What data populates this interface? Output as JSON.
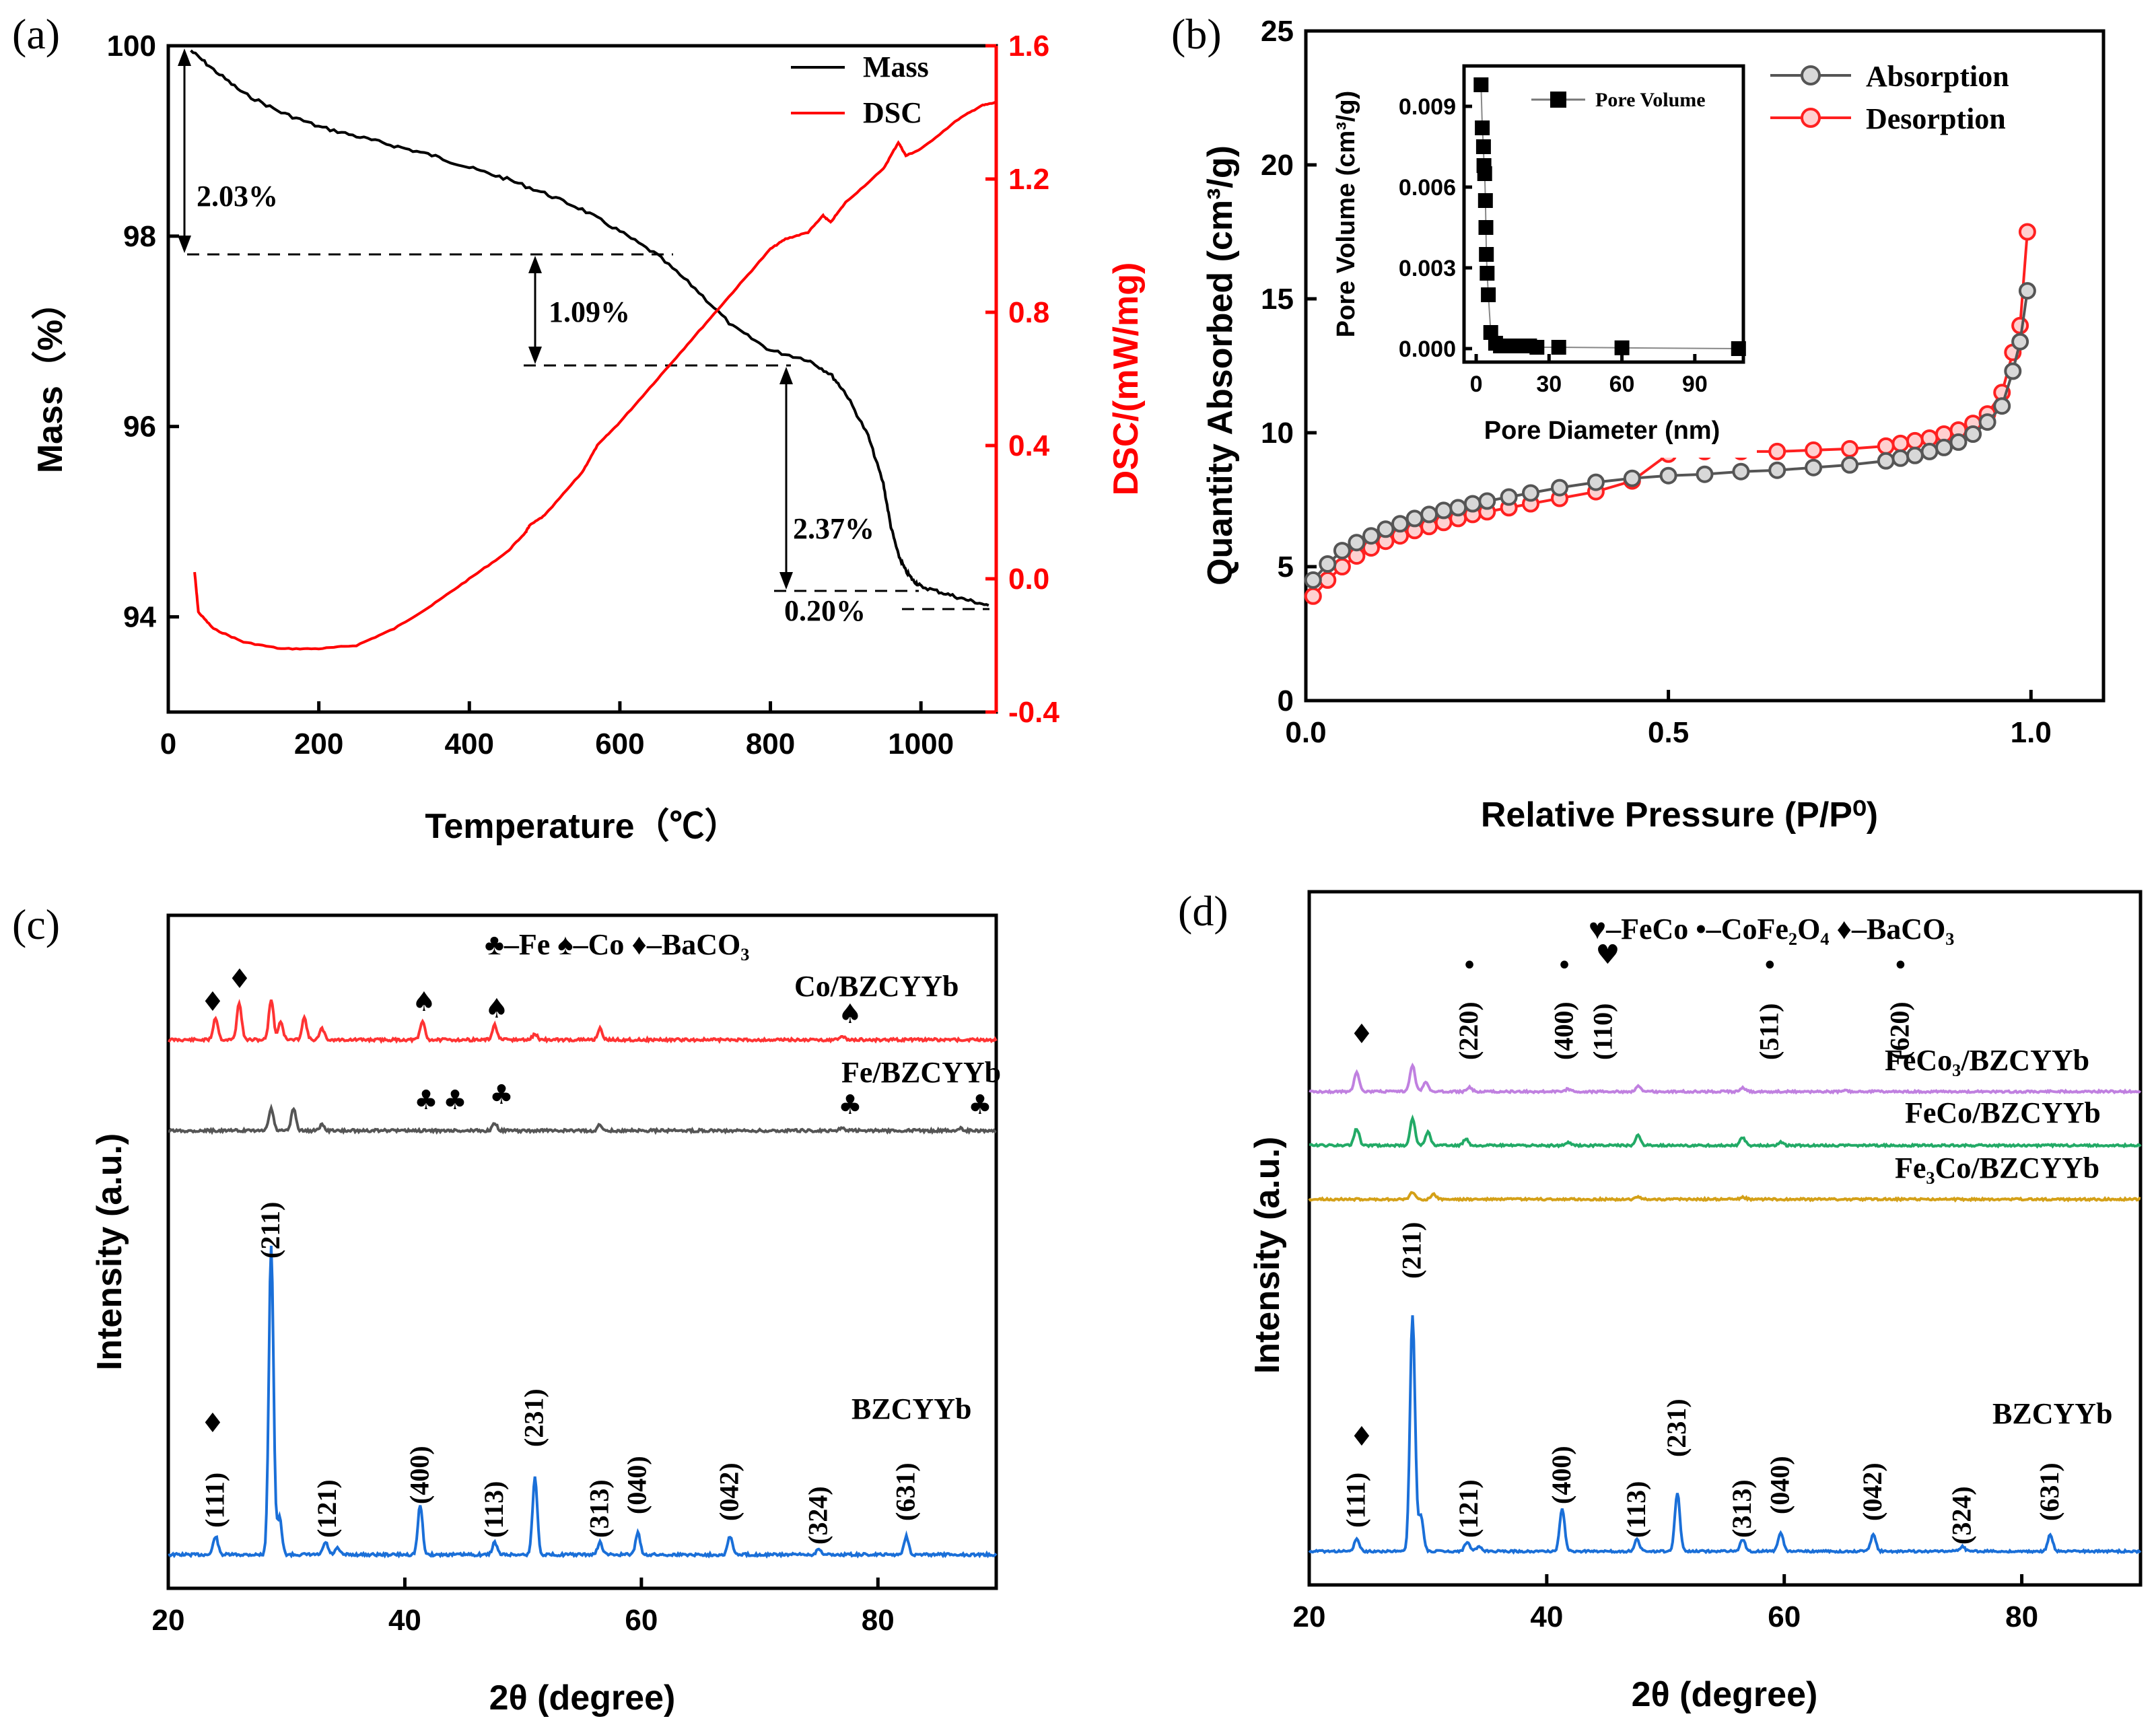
{
  "chart_data": [
    {
      "id": "a",
      "panel_label": "(a)",
      "type": "line",
      "xlabel": "Temperature（℃）",
      "ylabel": "Mass（%）",
      "y2label": "DSC/(mW/mg)",
      "xlim": [
        0,
        1100
      ],
      "ylim": [
        93,
        100
      ],
      "y2lim": [
        -0.4,
        1.6
      ],
      "xticks": [
        0,
        200,
        400,
        600,
        800,
        1000
      ],
      "yticks": [
        94,
        96,
        98,
        100
      ],
      "y2ticks": [
        -0.4,
        0.0,
        0.4,
        0.8,
        1.2,
        1.6
      ],
      "colors": {
        "Mass": "#000000",
        "DSC": "#ff0000"
      },
      "series": [
        {
          "name": "Mass",
          "axis": "left",
          "x": [
            30,
            60,
            100,
            150,
            200,
            250,
            300,
            350,
            400,
            450,
            500,
            550,
            600,
            650,
            700,
            750,
            800,
            850,
            880,
            900,
            930,
            950,
            960,
            970,
            980,
            990,
            1000,
            1030,
            1060,
            1090
          ],
          "y": [
            99.95,
            99.75,
            99.5,
            99.3,
            99.15,
            99.05,
            98.95,
            98.85,
            98.72,
            98.6,
            98.45,
            98.28,
            98.05,
            97.8,
            97.45,
            97.05,
            96.8,
            96.7,
            96.55,
            96.35,
            95.9,
            95.4,
            94.95,
            94.65,
            94.48,
            94.38,
            94.32,
            94.25,
            94.18,
            94.12
          ]
        },
        {
          "name": "DSC",
          "axis": "right",
          "x": [
            35,
            40,
            60,
            100,
            150,
            200,
            250,
            300,
            350,
            400,
            450,
            475,
            480,
            500,
            550,
            570,
            600,
            650,
            700,
            750,
            800,
            820,
            850,
            870,
            880,
            900,
            950,
            970,
            980,
            1000,
            1050,
            1080,
            1100
          ],
          "y": [
            0.02,
            -0.1,
            -0.15,
            -0.19,
            -0.21,
            -0.21,
            -0.2,
            -0.15,
            -0.08,
            0.0,
            0.08,
            0.14,
            0.16,
            0.19,
            0.32,
            0.4,
            0.47,
            0.6,
            0.73,
            0.86,
            0.99,
            1.02,
            1.04,
            1.09,
            1.07,
            1.13,
            1.23,
            1.31,
            1.27,
            1.29,
            1.38,
            1.42,
            1.43
          ]
        }
      ],
      "annotations": [
        "2.03%",
        "1.09%",
        "2.37%",
        "0.20%"
      ]
    },
    {
      "id": "b",
      "panel_label": "(b)",
      "type": "line",
      "xlabel": "Relative Pressure (P/P⁰)",
      "ylabel": "Quantity Absorbed (cm³/g)",
      "xlim": [
        0,
        1.1
      ],
      "ylim": [
        0,
        25
      ],
      "xticks": [
        0.0,
        0.5,
        1.0
      ],
      "xticklabels": [
        "0.0",
        "0.5",
        "1.0"
      ],
      "yticks": [
        0,
        5,
        10,
        15,
        20,
        25
      ],
      "colors": {
        "Absorption": "#555555",
        "Desorption": "#ff2020"
      },
      "series": [
        {
          "name": "Absorption",
          "x": [
            0.01,
            0.03,
            0.05,
            0.07,
            0.09,
            0.11,
            0.13,
            0.15,
            0.17,
            0.19,
            0.21,
            0.23,
            0.25,
            0.28,
            0.31,
            0.35,
            0.4,
            0.45,
            0.5,
            0.55,
            0.6,
            0.65,
            0.7,
            0.75,
            0.8,
            0.82,
            0.84,
            0.86,
            0.88,
            0.9,
            0.92,
            0.94,
            0.96,
            0.975,
            0.985,
            0.995
          ],
          "y": [
            4.5,
            5.1,
            5.6,
            5.9,
            6.15,
            6.4,
            6.6,
            6.8,
            6.95,
            7.1,
            7.2,
            7.35,
            7.45,
            7.6,
            7.75,
            7.95,
            8.15,
            8.3,
            8.4,
            8.45,
            8.55,
            8.6,
            8.7,
            8.8,
            8.95,
            9.05,
            9.15,
            9.3,
            9.45,
            9.65,
            9.95,
            10.4,
            11.0,
            12.3,
            13.4,
            15.3
          ]
        },
        {
          "name": "Desorption",
          "x": [
            0.01,
            0.03,
            0.05,
            0.07,
            0.09,
            0.11,
            0.13,
            0.15,
            0.17,
            0.19,
            0.21,
            0.23,
            0.25,
            0.28,
            0.31,
            0.35,
            0.4,
            0.45,
            0.5,
            0.55,
            0.6,
            0.65,
            0.7,
            0.75,
            0.8,
            0.82,
            0.84,
            0.86,
            0.88,
            0.9,
            0.92,
            0.94,
            0.96,
            0.975,
            0.985,
            0.995
          ],
          "y": [
            3.9,
            4.5,
            5.0,
            5.4,
            5.7,
            5.95,
            6.15,
            6.35,
            6.5,
            6.65,
            6.8,
            6.95,
            7.05,
            7.2,
            7.35,
            7.55,
            7.8,
            8.2,
            9.2,
            9.3,
            9.3,
            9.3,
            9.35,
            9.4,
            9.5,
            9.6,
            9.7,
            9.8,
            9.95,
            10.1,
            10.35,
            10.7,
            11.5,
            13.0,
            14.0,
            17.5
          ]
        }
      ],
      "inset": {
        "xlabel": "Pore Diameter (nm)",
        "ylabel": "Pore Volume (cm³/g)",
        "xlim": [
          -5,
          110
        ],
        "ylim": [
          -0.0005,
          0.0105
        ],
        "xticks": [
          0,
          30,
          60,
          90
        ],
        "yticks": [
          0.0,
          0.003,
          0.006,
          0.009
        ],
        "yticklabels": [
          "0.000",
          "0.003",
          "0.006",
          "0.009"
        ],
        "legend": "Pore Volume",
        "x": [
          2.0,
          2.5,
          3.0,
          3.2,
          3.5,
          3.8,
          4.0,
          4.2,
          4.5,
          5.0,
          6.0,
          8.0,
          10,
          12,
          15,
          18,
          20,
          22,
          25,
          34,
          60,
          108
        ],
        "y": [
          0.0098,
          0.0082,
          0.0075,
          0.0068,
          0.0065,
          0.0055,
          0.0045,
          0.0035,
          0.0028,
          0.002,
          0.0006,
          0.0002,
          0.0001,
          0.0001,
          0.0001,
          0.0001,
          0.0001,
          0.0001,
          5e-05,
          5e-05,
          3e-05,
          0.0
        ]
      }
    },
    {
      "id": "c",
      "panel_label": "(c)",
      "type": "line",
      "xlabel": "2θ (degree)",
      "ylabel": "Intensity (a.u.)",
      "xlim": [
        20,
        90
      ],
      "xticks": [
        20,
        40,
        60,
        80
      ],
      "legend_text": "♣–Fe ♠–Co ♦–BaCO₃",
      "series": [
        {
          "name": "Co/BZCYYb",
          "color": "#ff3333",
          "peaks": [
            [
              24.0,
              0.3
            ],
            [
              26.0,
              0.5
            ],
            [
              28.7,
              0.55
            ],
            [
              29.5,
              0.25
            ],
            [
              31.5,
              0.3
            ],
            [
              33.0,
              0.15
            ],
            [
              41.5,
              0.25
            ],
            [
              47.6,
              0.2
            ],
            [
              51.0,
              0.08
            ],
            [
              56.5,
              0.15
            ],
            [
              77.0,
              0.05
            ]
          ]
        },
        {
          "name": "Fe/BZCYYb",
          "color": "#555555",
          "peaks": [
            [
              28.7,
              0.3
            ],
            [
              30.6,
              0.3
            ],
            [
              33.0,
              0.08
            ],
            [
              47.6,
              0.1
            ],
            [
              56.5,
              0.08
            ],
            [
              77.0,
              0.04
            ],
            [
              87.0,
              0.03
            ]
          ]
        },
        {
          "name": "BZCYYb",
          "color": "#1a6fd8",
          "peaks": [
            [
              24.0,
              0.06
            ],
            [
              28.7,
              1.0
            ],
            [
              29.4,
              0.12
            ],
            [
              33.3,
              0.04
            ],
            [
              34.3,
              0.02
            ],
            [
              41.3,
              0.16
            ],
            [
              47.6,
              0.04
            ],
            [
              51.0,
              0.25
            ],
            [
              56.5,
              0.04
            ],
            [
              59.7,
              0.07
            ],
            [
              67.5,
              0.06
            ],
            [
              75.0,
              0.02
            ],
            [
              82.4,
              0.06
            ]
          ]
        }
      ],
      "peak_labels": [
        "(111)",
        "(211)",
        "(121)",
        "(400)",
        "(113)",
        "(231)",
        "(313)",
        "(040)",
        "(042)",
        "(324)",
        "(631)"
      ]
    },
    {
      "id": "d",
      "panel_label": "(d)",
      "type": "line",
      "xlabel": "2θ (degree)",
      "ylabel": "Intensity (a.u.)",
      "xlim": [
        20,
        90
      ],
      "xticks": [
        20,
        40,
        60,
        80
      ],
      "legend_text": "♥–FeCo •–CoFe₂O₄ ♦–BaCO₃",
      "series": [
        {
          "name": "FeCo₃/BZCYYb",
          "color": "#c080e0",
          "peaks": [
            [
              24.0,
              0.3
            ],
            [
              28.7,
              0.4
            ],
            [
              29.8,
              0.15
            ],
            [
              33.5,
              0.06
            ],
            [
              41.8,
              0.04
            ],
            [
              47.7,
              0.08
            ],
            [
              56.5,
              0.06
            ],
            [
              65.0,
              0.02
            ]
          ]
        },
        {
          "name": "FeCo/BZCYYb",
          "color": "#22aa66",
          "peaks": [
            [
              24.0,
              0.25
            ],
            [
              28.7,
              0.4
            ],
            [
              30.0,
              0.2
            ],
            [
              33.2,
              0.1
            ],
            [
              41.8,
              0.05
            ],
            [
              47.7,
              0.15
            ],
            [
              56.5,
              0.12
            ],
            [
              59.7,
              0.05
            ]
          ]
        },
        {
          "name": "Fe₃Co/BZCYYb",
          "color": "#d4a017",
          "peaks": [
            [
              28.7,
              0.12
            ],
            [
              30.5,
              0.08
            ],
            [
              47.7,
              0.04
            ],
            [
              56.5,
              0.04
            ]
          ]
        },
        {
          "name": "BZCYYb",
          "color": "#1a6fd8",
          "peaks": [
            [
              24.0,
              0.05
            ],
            [
              28.7,
              1.0
            ],
            [
              29.4,
              0.15
            ],
            [
              33.3,
              0.04
            ],
            [
              34.3,
              0.02
            ],
            [
              41.3,
              0.18
            ],
            [
              47.6,
              0.05
            ],
            [
              51.0,
              0.25
            ],
            [
              56.5,
              0.05
            ],
            [
              59.7,
              0.08
            ],
            [
              67.5,
              0.07
            ],
            [
              75.0,
              0.02
            ],
            [
              82.4,
              0.07
            ]
          ]
        }
      ],
      "peak_labels": [
        "(111)",
        "(211)",
        "(121)",
        "(400)",
        "(113)",
        "(231)",
        "(313)",
        "(040)",
        "(042)",
        "(324)",
        "(631)"
      ],
      "phase_labels": [
        "(220)",
        "(400)",
        "(110)",
        "(511)",
        "(620)"
      ]
    }
  ]
}
